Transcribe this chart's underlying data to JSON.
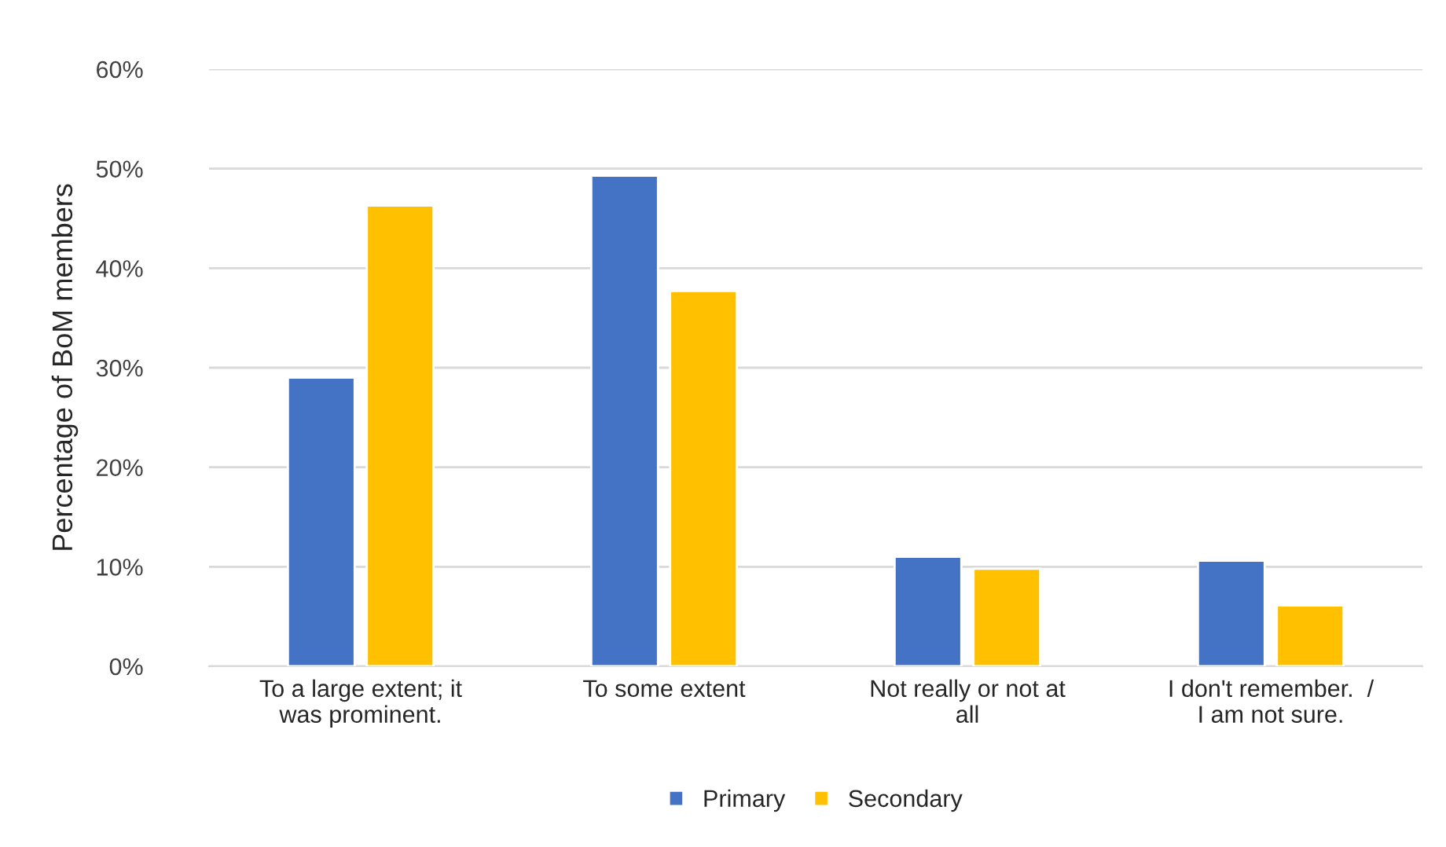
{
  "chart_data": {
    "type": "bar",
    "ylabel": "Percentage of BoM members",
    "categories": [
      "To a large extent; it\nwas prominent.",
      "To some extent",
      "Not really or not at\nall",
      "I don't remember.  /\nI am not sure."
    ],
    "series": [
      {
        "name": "Primary",
        "color": "#4472c4",
        "values": [
          29.0,
          49.3,
          11.0,
          10.6
        ]
      },
      {
        "name": "Secondary",
        "color": "#ffc000",
        "values": [
          46.3,
          37.7,
          9.8,
          6.1
        ]
      }
    ],
    "ylim": [
      0,
      60
    ],
    "yticks": [
      {
        "value": 0,
        "label": "0%"
      },
      {
        "value": 10,
        "label": "10%"
      },
      {
        "value": 20,
        "label": "20%"
      },
      {
        "value": 30,
        "label": "30%"
      },
      {
        "value": 40,
        "label": "40%"
      },
      {
        "value": 50,
        "label": "50%"
      },
      {
        "value": 60,
        "label": "60%"
      }
    ],
    "grid": "y",
    "legend": "bottom"
  }
}
